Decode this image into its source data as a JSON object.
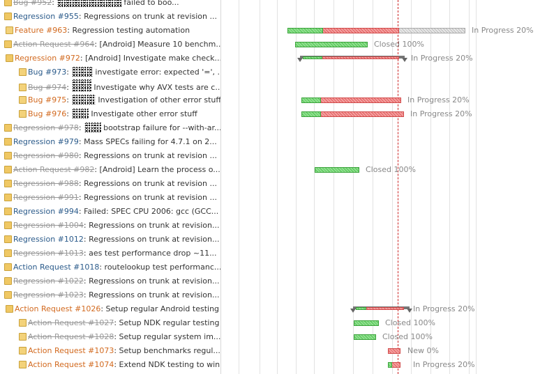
{
  "rows": [
    {
      "tracker": "Bug #952",
      "style": "closed",
      "subject": "failed to boo...",
      "blot": true,
      "indent": 0
    },
    {
      "tracker": "Regression #955",
      "style": "blue",
      "subject": "Regressions on trunk at revision ...",
      "blot": false,
      "indent": 0
    },
    {
      "tracker": "Feature #963",
      "style": "orange",
      "subject": "Regression testing automation",
      "blot": false,
      "indent": 1
    },
    {
      "tracker": "Action Request #964",
      "style": "closed",
      "subject": "[Android] Measure 10 benchm...",
      "blot": false,
      "indent": 0
    },
    {
      "tracker": "Regression #972",
      "style": "orange",
      "subject": "[Android] Investigate make check...",
      "blot": false,
      "indent": 0
    },
    {
      "tracker": "Bug #973",
      "style": "blue",
      "subject": "investigate error: expected '=', ...",
      "blot": true,
      "indent": 2
    },
    {
      "tracker": "Bug #974",
      "style": "closed",
      "subject": "Investigate why AVX tests are c...",
      "blot": true,
      "indent": 2
    },
    {
      "tracker": "Bug #975",
      "style": "orange",
      "subject": "Investigation of other error stuff",
      "blot": true,
      "indent": 2
    },
    {
      "tracker": "Bug #976",
      "style": "orange",
      "subject": "Investigate other error stuff",
      "blot": true,
      "indent": 3
    },
    {
      "tracker": "Regression #978",
      "style": "closed",
      "subject": "bootstrap failure for --with-ar...",
      "blot": true,
      "indent": 0
    },
    {
      "tracker": "Regression #979",
      "style": "blue",
      "subject": "Mass SPECs failing for 4.7.1 on 2...",
      "blot": false,
      "indent": 0
    },
    {
      "tracker": "Regression #980",
      "style": "closed",
      "subject": "Regressions on trunk at revision ...",
      "blot": false,
      "indent": 0
    },
    {
      "tracker": "Action Request #982",
      "style": "closed",
      "subject": "[Android] Learn the process o...",
      "blot": false,
      "indent": 0
    },
    {
      "tracker": "Regression #988",
      "style": "closed",
      "subject": "Regressions on trunk at revision ...",
      "blot": false,
      "indent": 0
    },
    {
      "tracker": "Regression #991",
      "style": "closed",
      "subject": "Regressions on trunk at revision ...",
      "blot": false,
      "indent": 0
    },
    {
      "tracker": "Regression #994",
      "style": "blue",
      "subject": "Failed: SPEC CPU 2006: gcc (GCC...",
      "blot": false,
      "indent": 0
    },
    {
      "tracker": "Regression #1004",
      "style": "closed",
      "subject": "Regressions on trunk at revision...",
      "blot": false,
      "indent": 0
    },
    {
      "tracker": "Regression #1012",
      "style": "blue",
      "subject": "Regressions on trunk at revision...",
      "blot": false,
      "indent": 0
    },
    {
      "tracker": "Regression #1013",
      "style": "closed",
      "subject": "aes test performance drop ~11...",
      "blot": false,
      "indent": 0
    },
    {
      "tracker": "Action Request #1018",
      "style": "blue",
      "subject": "routelookup test performanc...",
      "blot": false,
      "indent": 0
    },
    {
      "tracker": "Regression #1022",
      "style": "closed",
      "subject": "Regressions on trunk at revision...",
      "blot": false,
      "indent": 0
    },
    {
      "tracker": "Regression #1023",
      "style": "closed",
      "subject": "Regressions on trunk at revision...",
      "blot": false,
      "indent": 0
    },
    {
      "tracker": "Action Request #1026",
      "style": "orange",
      "subject": "Setup regular Android testing",
      "blot": false,
      "indent": 0
    },
    {
      "tracker": "Action Request #1027",
      "style": "closed",
      "subject": "Setup NDK regular testing",
      "blot": false,
      "indent": 2
    },
    {
      "tracker": "Action Request #1028",
      "style": "closed",
      "subject": "Setup regular system im...",
      "blot": false,
      "indent": 2
    },
    {
      "tracker": "Action Request #1073",
      "style": "orange",
      "subject": "Setup benchmarks regul...",
      "blot": false,
      "indent": 2
    },
    {
      "tracker": "Action Request #1074",
      "style": "orange",
      "subject": "Extend NDK testing to win...",
      "blot": false,
      "indent": 2
    }
  ],
  "bars": [
    {
      "row": 2,
      "type": "task",
      "status": "In Progress 20%",
      "done_pct": 20
    },
    {
      "row": 3,
      "type": "task",
      "status": "Closed 100%",
      "done_pct": 100
    },
    {
      "row": 4,
      "type": "parent",
      "status": "In Progress 20%",
      "done_pct": 20
    },
    {
      "row": 7,
      "type": "task",
      "status": "In Progress 20%",
      "done_pct": 20
    },
    {
      "row": 8,
      "type": "task",
      "status": "In Progress 20%",
      "done_pct": 20
    },
    {
      "row": 12,
      "type": "task",
      "status": "Closed 100%",
      "done_pct": 100
    },
    {
      "row": 22,
      "type": "parent",
      "status": "In Progress 20%",
      "done_pct": 20
    },
    {
      "row": 23,
      "type": "task",
      "status": "Closed 100%",
      "done_pct": 100
    },
    {
      "row": 24,
      "type": "task",
      "status": "Closed 100%",
      "done_pct": 100
    },
    {
      "row": 25,
      "type": "task",
      "status": "New 0%",
      "done_pct": 0
    },
    {
      "row": 26,
      "type": "task",
      "status": "In Progress 20%",
      "done_pct": 20
    }
  ]
}
